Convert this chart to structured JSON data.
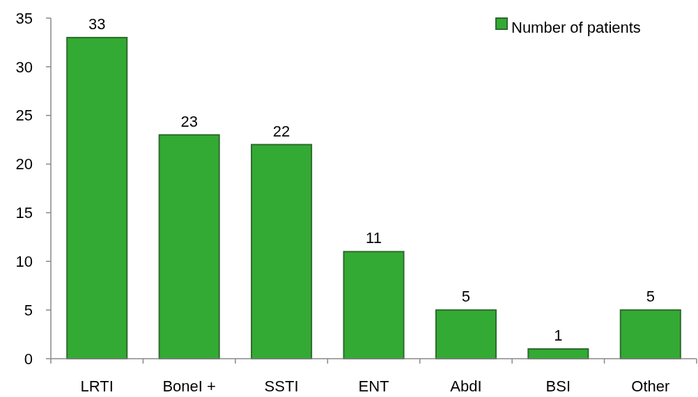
{
  "chart_data": {
    "type": "bar",
    "categories": [
      "LRTI",
      "BoneI +",
      "SSTI",
      "ENT",
      "AbdI",
      "BSI",
      "Other"
    ],
    "series": [
      {
        "name": "Number of patients",
        "color": "#33aa33",
        "values": [
          33,
          23,
          22,
          11,
          5,
          1,
          5
        ]
      }
    ],
    "ylim": [
      0,
      35
    ],
    "yticks": [
      0,
      5,
      10,
      15,
      20,
      25,
      30,
      35
    ],
    "grid": false,
    "legend": "top right",
    "data_labels": true
  }
}
